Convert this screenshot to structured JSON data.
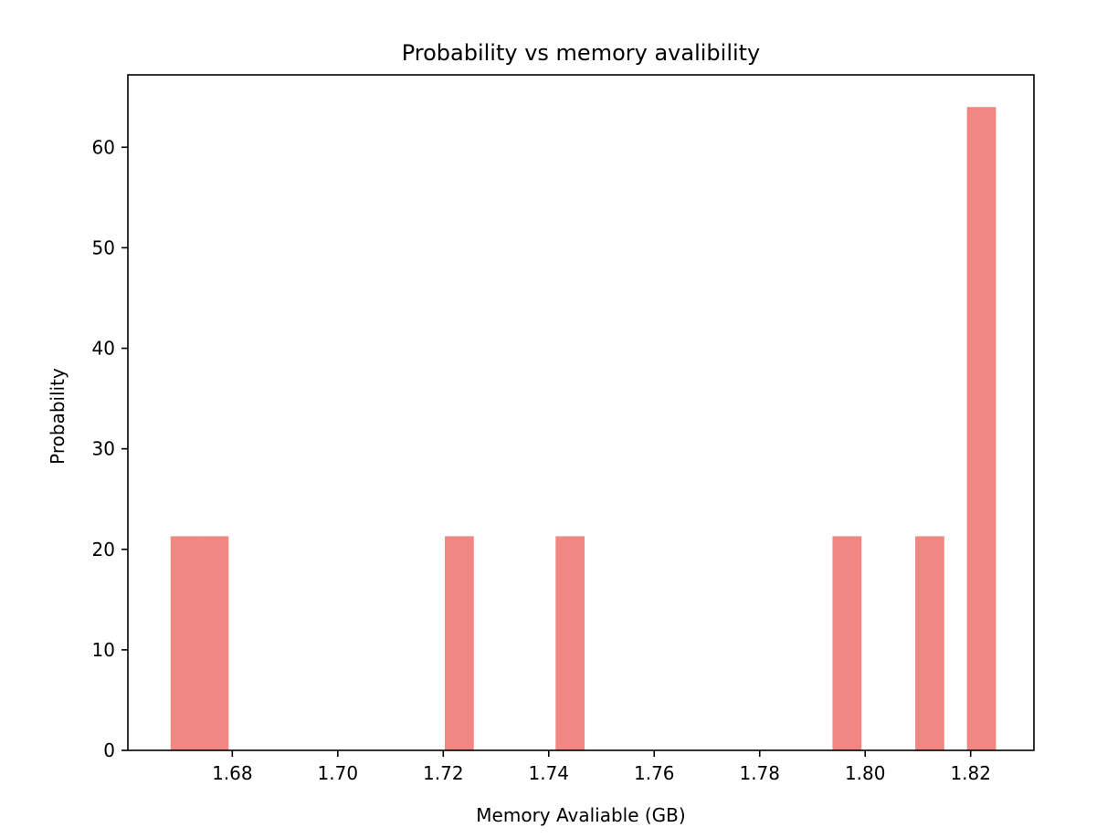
{
  "chart_data": {
    "type": "bar",
    "title": "Probability vs memory avalibility",
    "xlabel": "Memory Avaliable (GB)",
    "ylabel": "Probability",
    "xlim": [
      1.6602,
      1.832
    ],
    "ylim": [
      0,
      67.2
    ],
    "xticks": [
      1.68,
      1.7,
      1.72,
      1.74,
      1.76,
      1.78,
      1.8,
      1.82
    ],
    "xtick_labels": [
      "1.68",
      "1.70",
      "1.72",
      "1.74",
      "1.76",
      "1.78",
      "1.80",
      "1.82"
    ],
    "yticks": [
      0,
      10,
      20,
      30,
      40,
      50,
      60
    ],
    "ytick_labels": [
      "0",
      "10",
      "20",
      "30",
      "40",
      "50",
      "60"
    ],
    "bin_width": 0.0055,
    "bars": [
      {
        "x_start": 1.6683,
        "x_end": 1.6738,
        "value": 21.3
      },
      {
        "x_start": 1.6738,
        "x_end": 1.6793,
        "value": 21.3
      },
      {
        "x_start": 1.7203,
        "x_end": 1.7258,
        "value": 21.3
      },
      {
        "x_start": 1.7413,
        "x_end": 1.7468,
        "value": 21.3
      },
      {
        "x_start": 1.7938,
        "x_end": 1.7993,
        "value": 21.3
      },
      {
        "x_start": 1.8095,
        "x_end": 1.815,
        "value": 21.3
      },
      {
        "x_start": 1.8193,
        "x_end": 1.8248,
        "value": 64.0
      }
    ],
    "bar_color": "#f08783",
    "grid": false,
    "legend": false
  }
}
